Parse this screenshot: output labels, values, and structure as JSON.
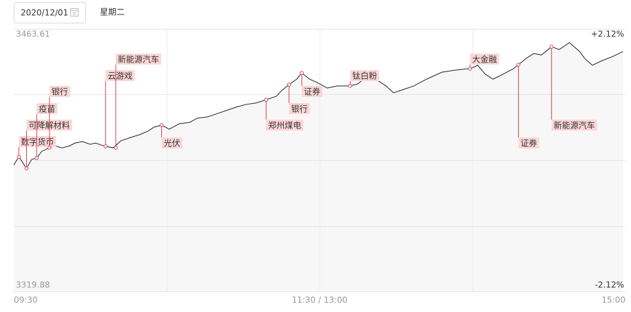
{
  "header": {
    "date": "2020/12/01",
    "weekday": "星期二"
  },
  "chart_data": {
    "type": "line",
    "x": [
      0,
      2,
      5,
      7,
      9,
      11,
      14,
      16,
      19,
      22,
      24,
      27,
      30,
      32,
      36,
      39,
      42,
      46,
      50,
      53,
      55,
      58,
      61,
      65,
      69,
      72,
      76,
      80,
      84,
      88,
      91,
      95,
      99,
      103,
      105,
      108,
      111,
      113,
      116,
      119,
      123,
      127,
      132,
      135,
      139,
      142,
      146,
      149,
      153,
      157,
      162,
      168,
      173,
      178,
      179,
      182,
      185,
      188,
      192,
      196,
      198,
      201,
      204,
      207,
      211,
      214,
      218,
      222,
      224,
      227,
      231,
      235,
      239
    ],
    "series": [
      {
        "color": "#222222",
        "values": [
          3389.1,
          3393.6,
          3387.2,
          3392.1,
          3392.9,
          3396.6,
          3398.5,
          3399.6,
          3398.5,
          3399.6,
          3401.1,
          3401.9,
          3400.4,
          3401.1,
          3399.3,
          3398.5,
          3402.3,
          3404.2,
          3406.0,
          3407.9,
          3409.8,
          3410.9,
          3408.7,
          3411.7,
          3412.4,
          3414.7,
          3415.4,
          3417.3,
          3419.2,
          3421.1,
          3422.2,
          3423.0,
          3424.8,
          3426.7,
          3429.7,
          3433.1,
          3436.1,
          3439.5,
          3436.1,
          3434.3,
          3431.2,
          3432.4,
          3432.4,
          3433.5,
          3438.0,
          3436.1,
          3432.4,
          3428.6,
          3430.5,
          3432.4,
          3436.1,
          3439.9,
          3441.0,
          3441.8,
          3441.8,
          3443.7,
          3438.8,
          3436.1,
          3438.8,
          3441.8,
          3444.0,
          3447.4,
          3450.1,
          3449.3,
          3453.8,
          3452.3,
          3456.1,
          3451.2,
          3447.4,
          3443.7,
          3446.3,
          3448.5,
          3451.2
        ]
      }
    ],
    "xlim": [
      0,
      240
    ],
    "xticks": [
      {
        "value": 0,
        "label": "09:30"
      },
      {
        "value": 120,
        "label": "11:30 / 13:00"
      },
      {
        "value": 240,
        "label": "15:00"
      }
    ],
    "xgrid": [
      60,
      120,
      180
    ],
    "ylim": [
      3319.88,
      3463.61
    ],
    "yticks": [
      3463.61,
      3319.88
    ],
    "ygrid": [
      3463.61,
      3427.68,
      3391.745,
      3355.81,
      3319.88
    ],
    "y2lim": [
      -2.12,
      2.12
    ],
    "y2ticks": [
      {
        "value": 2.12,
        "label": "+2.12%"
      },
      {
        "value": -2.12,
        "label": "-2.12%"
      }
    ],
    "annotation_color": "#d6404f",
    "annotations": [
      {
        "text": "数字货币",
        "x": 2,
        "value": 3393.6
      },
      {
        "text": "可降解材料",
        "x": 5,
        "value": 3387.2
      },
      {
        "text": "疫苗",
        "x": 9,
        "value": 3392.9
      },
      {
        "text": "银行",
        "x": 14,
        "value": 3398.5
      },
      {
        "text": "云游戏",
        "x": 36,
        "value": 3399.3
      },
      {
        "text": "新能源汽车",
        "x": 40,
        "value": 3398.5
      },
      {
        "text": "光伏",
        "x": 58,
        "value": 3410.9
      },
      {
        "text": "郑州煤电",
        "x": 99,
        "value": 3424.8
      },
      {
        "text": "银行",
        "x": 108,
        "value": 3433.1
      },
      {
        "text": "证券",
        "x": 113,
        "value": 3439.5
      },
      {
        "text": "钛白粉",
        "x": 132,
        "value": 3432.4
      },
      {
        "text": "大金融",
        "x": 179,
        "value": 3441.8
      },
      {
        "text": "证券",
        "x": 198,
        "value": 3444.0
      },
      {
        "text": "新能源汽车",
        "x": 211,
        "value": 3453.8
      }
    ]
  }
}
